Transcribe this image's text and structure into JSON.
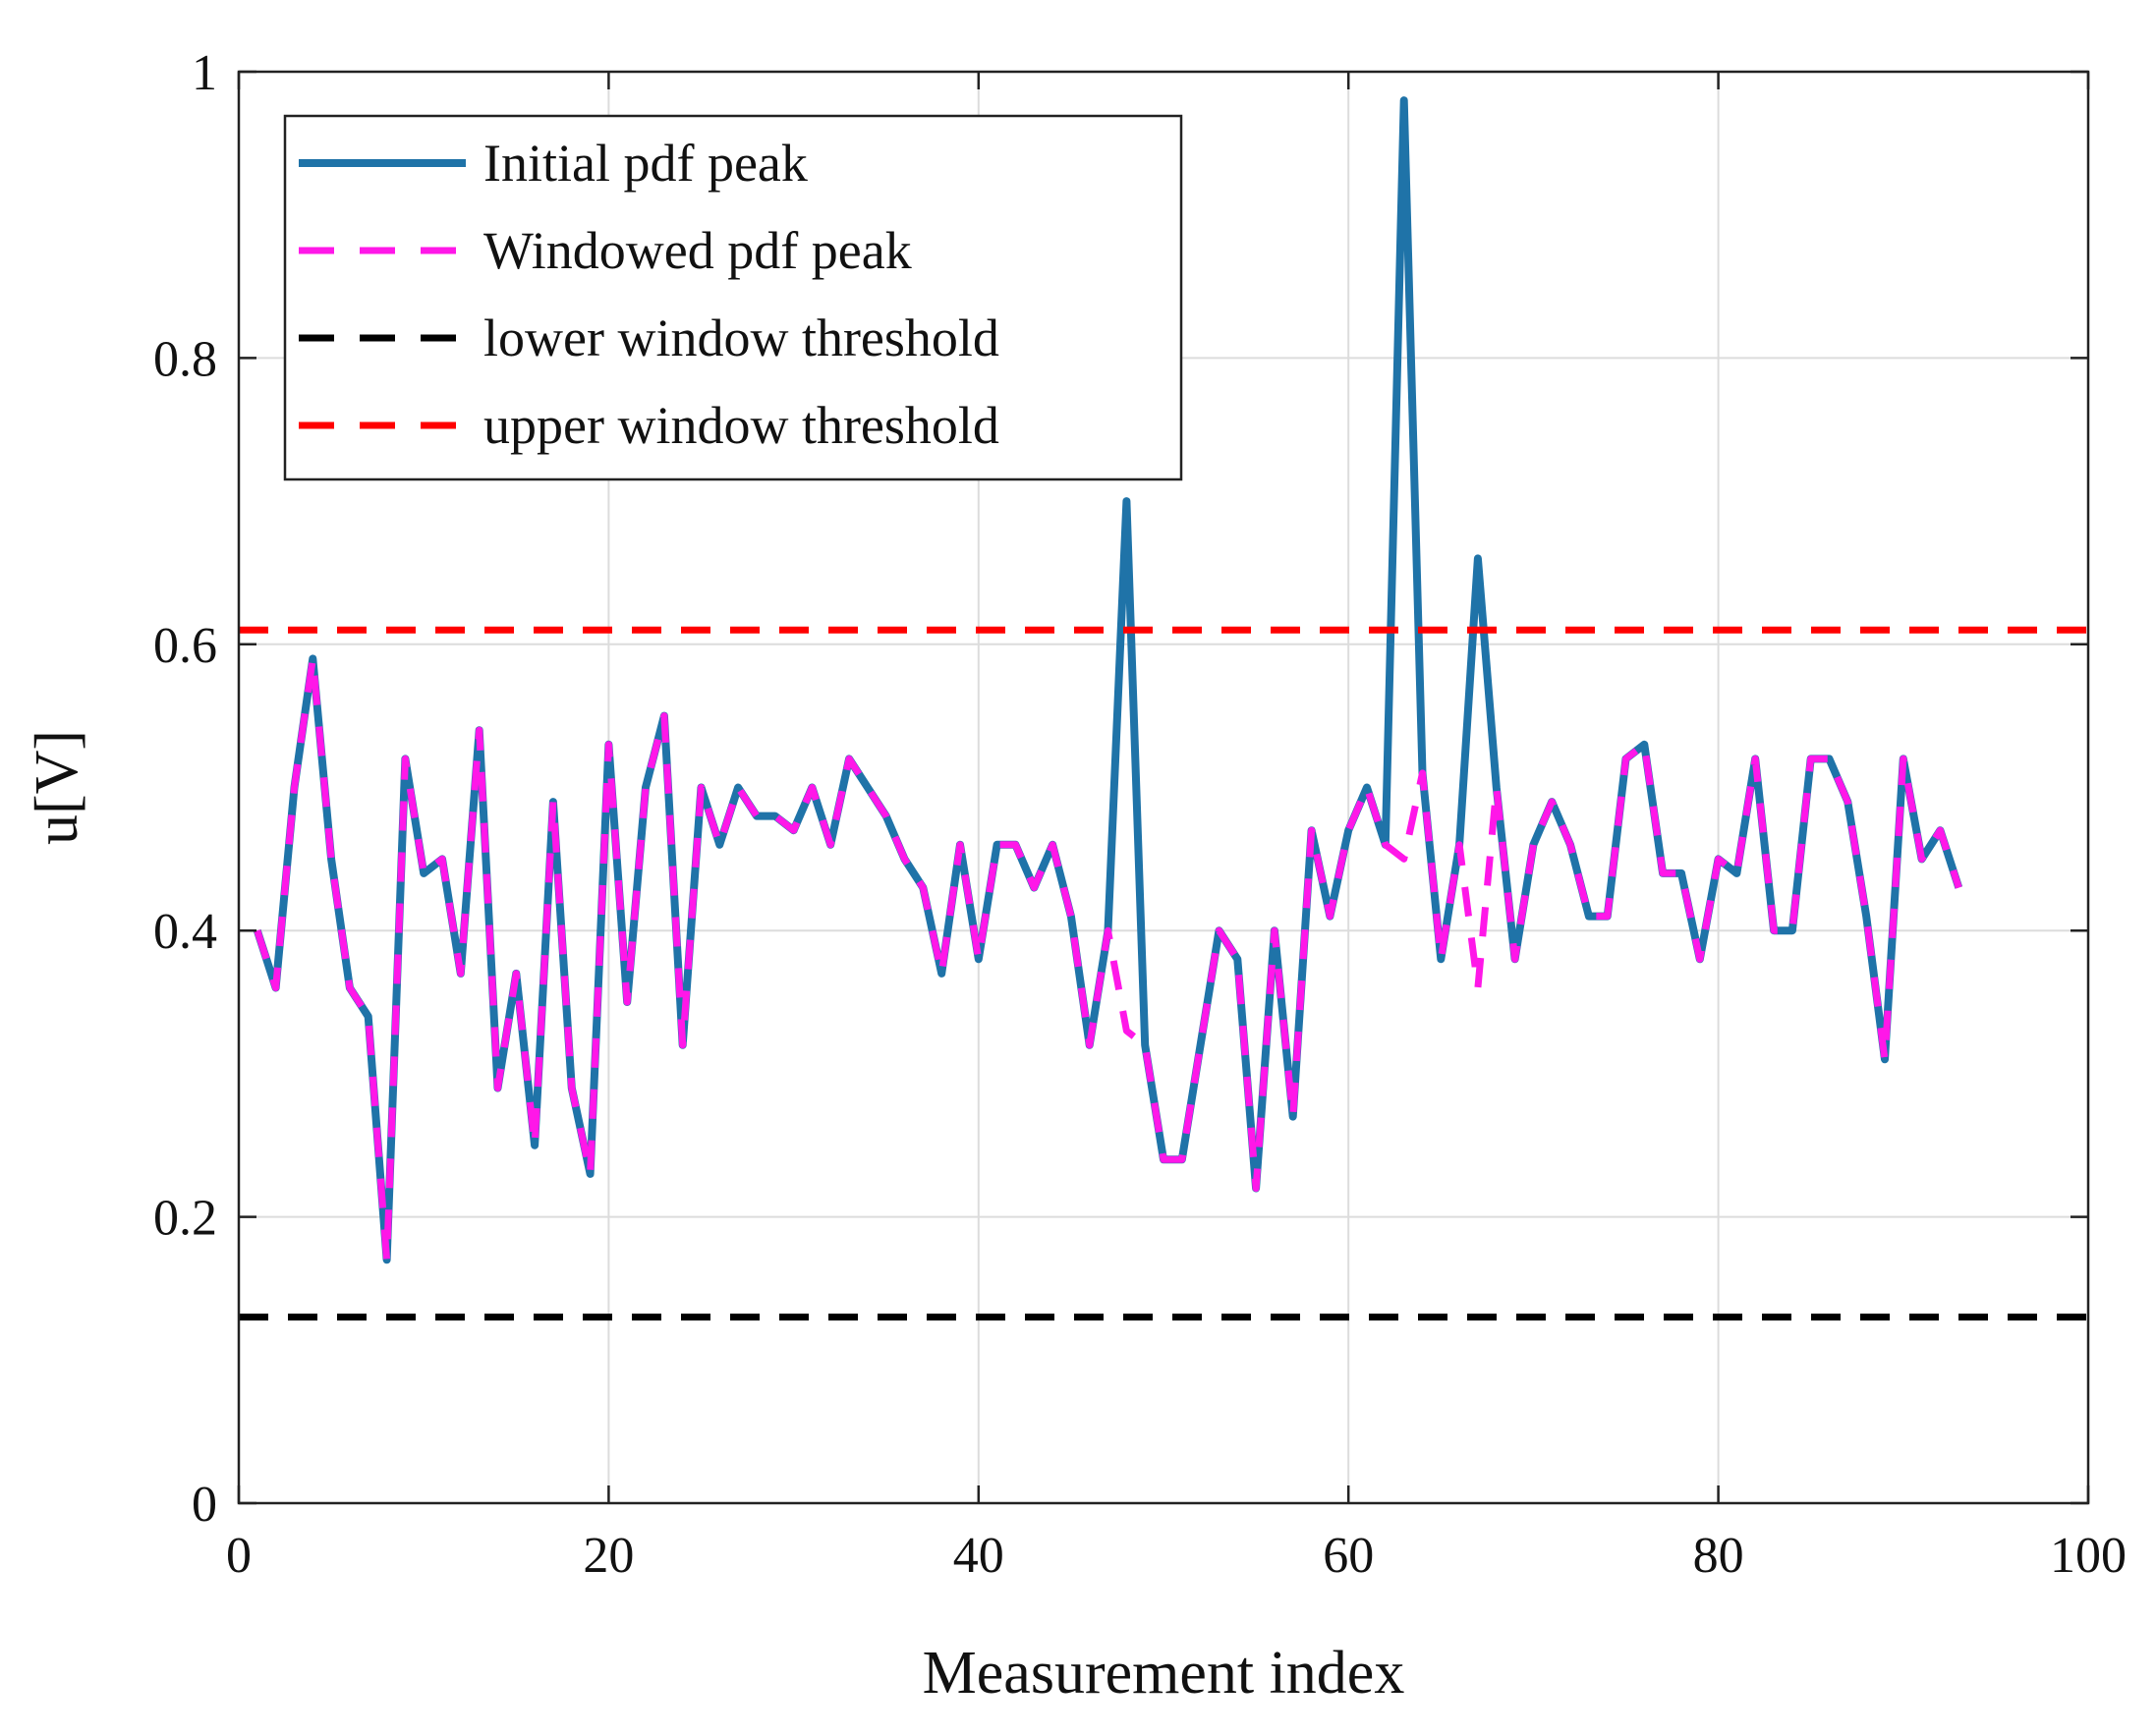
{
  "chart_data": {
    "type": "line",
    "title": "",
    "xlabel": "Measurement index",
    "ylabel": "u[V]",
    "xlim": [
      0,
      100
    ],
    "ylim": [
      0,
      1
    ],
    "x_ticks": [
      0,
      20,
      40,
      60,
      80,
      100
    ],
    "y_ticks": [
      0,
      0.2,
      0.4,
      0.6,
      0.8,
      1
    ],
    "x_tick_labels": [
      "0",
      "20",
      "40",
      "60",
      "80",
      "100"
    ],
    "y_tick_labels": [
      "0",
      "0.2",
      "0.4",
      "0.6",
      "0.8",
      "1"
    ],
    "grid": true,
    "legend_position": "top-left",
    "series": [
      {
        "name": "Initial pdf peak",
        "color": "#1f73a8",
        "style": "solid",
        "x": [
          1,
          2,
          3,
          4,
          5,
          6,
          7,
          8,
          9,
          10,
          11,
          12,
          13,
          14,
          15,
          16,
          17,
          18,
          19,
          20,
          21,
          22,
          23,
          24,
          25,
          26,
          27,
          28,
          29,
          30,
          31,
          32,
          33,
          34,
          35,
          36,
          37,
          38,
          39,
          40,
          41,
          42,
          43,
          44,
          45,
          46,
          47,
          48,
          49,
          50,
          51,
          52,
          53,
          54,
          55,
          56,
          57,
          58,
          59,
          60,
          61,
          62,
          63,
          64,
          65,
          66,
          67,
          68,
          69,
          70,
          71,
          72,
          73,
          74,
          75,
          76,
          77,
          78,
          79,
          80,
          81,
          82,
          83,
          84,
          85,
          86,
          87,
          88,
          89,
          90,
          91,
          92,
          93
        ],
        "values": [
          0.4,
          0.36,
          0.5,
          0.59,
          0.45,
          0.36,
          0.34,
          0.17,
          0.52,
          0.44,
          0.45,
          0.37,
          0.54,
          0.29,
          0.37,
          0.25,
          0.49,
          0.29,
          0.23,
          0.53,
          0.35,
          0.5,
          0.55,
          0.32,
          0.5,
          0.46,
          0.5,
          0.48,
          0.48,
          0.47,
          0.5,
          0.46,
          0.52,
          0.5,
          0.48,
          0.45,
          0.43,
          0.37,
          0.46,
          0.38,
          0.46,
          0.46,
          0.43,
          0.46,
          0.41,
          0.32,
          0.4,
          0.7,
          0.32,
          0.24,
          0.24,
          0.32,
          0.4,
          0.38,
          0.22,
          0.4,
          0.27,
          0.47,
          0.41,
          0.47,
          0.5,
          0.46,
          0.98,
          0.51,
          0.38,
          0.46,
          0.66,
          0.5,
          0.38,
          0.46,
          0.49,
          0.46,
          0.41,
          0.41,
          0.52,
          0.53,
          0.44,
          0.44,
          0.38,
          0.45,
          0.44,
          0.52,
          0.4,
          0.4,
          0.52,
          0.52,
          0.49,
          0.41,
          0.31,
          0.52,
          0.45,
          0.47,
          0.43
        ]
      },
      {
        "name": "Windowed pdf peak",
        "color": "#ff17e8",
        "style": "dashed",
        "x": [
          1,
          2,
          3,
          4,
          5,
          6,
          7,
          8,
          9,
          10,
          11,
          12,
          13,
          14,
          15,
          16,
          17,
          18,
          19,
          20,
          21,
          22,
          23,
          24,
          25,
          26,
          27,
          28,
          29,
          30,
          31,
          32,
          33,
          34,
          35,
          36,
          37,
          38,
          39,
          40,
          41,
          42,
          43,
          44,
          45,
          46,
          47,
          48,
          49,
          50,
          51,
          52,
          53,
          54,
          55,
          56,
          57,
          58,
          59,
          60,
          61,
          62,
          63,
          64,
          65,
          66,
          67,
          68,
          69,
          70,
          71,
          72,
          73,
          74,
          75,
          76,
          77,
          78,
          79,
          80,
          81,
          82,
          83,
          84,
          85,
          86,
          87,
          88,
          89,
          90,
          91,
          92,
          93
        ],
        "values": [
          0.4,
          0.36,
          0.5,
          0.59,
          0.45,
          0.36,
          0.34,
          0.17,
          0.52,
          0.44,
          0.45,
          0.37,
          0.54,
          0.29,
          0.37,
          0.25,
          0.49,
          0.29,
          0.23,
          0.53,
          0.35,
          0.5,
          0.55,
          0.32,
          0.5,
          0.46,
          0.5,
          0.48,
          0.48,
          0.47,
          0.5,
          0.46,
          0.52,
          0.5,
          0.48,
          0.45,
          0.43,
          0.37,
          0.46,
          0.38,
          0.46,
          0.46,
          0.43,
          0.46,
          0.41,
          0.32,
          0.4,
          0.33,
          0.32,
          0.24,
          0.24,
          0.32,
          0.4,
          0.38,
          0.22,
          0.4,
          0.27,
          0.47,
          0.41,
          0.47,
          0.5,
          0.46,
          0.45,
          0.51,
          0.38,
          0.46,
          0.36,
          0.5,
          0.38,
          0.46,
          0.49,
          0.46,
          0.41,
          0.41,
          0.52,
          0.53,
          0.44,
          0.44,
          0.38,
          0.45,
          0.44,
          0.52,
          0.4,
          0.4,
          0.52,
          0.52,
          0.49,
          0.41,
          0.31,
          0.52,
          0.45,
          0.47,
          0.43
        ]
      },
      {
        "name": "lower window threshold",
        "color": "#000000",
        "style": "dashed",
        "x": [
          0,
          100
        ],
        "values": [
          0.13,
          0.13
        ]
      },
      {
        "name": "upper window threshold",
        "color": "#ff0000",
        "style": "dashed",
        "x": [
          0,
          100
        ],
        "values": [
          0.61,
          0.61
        ]
      }
    ]
  }
}
